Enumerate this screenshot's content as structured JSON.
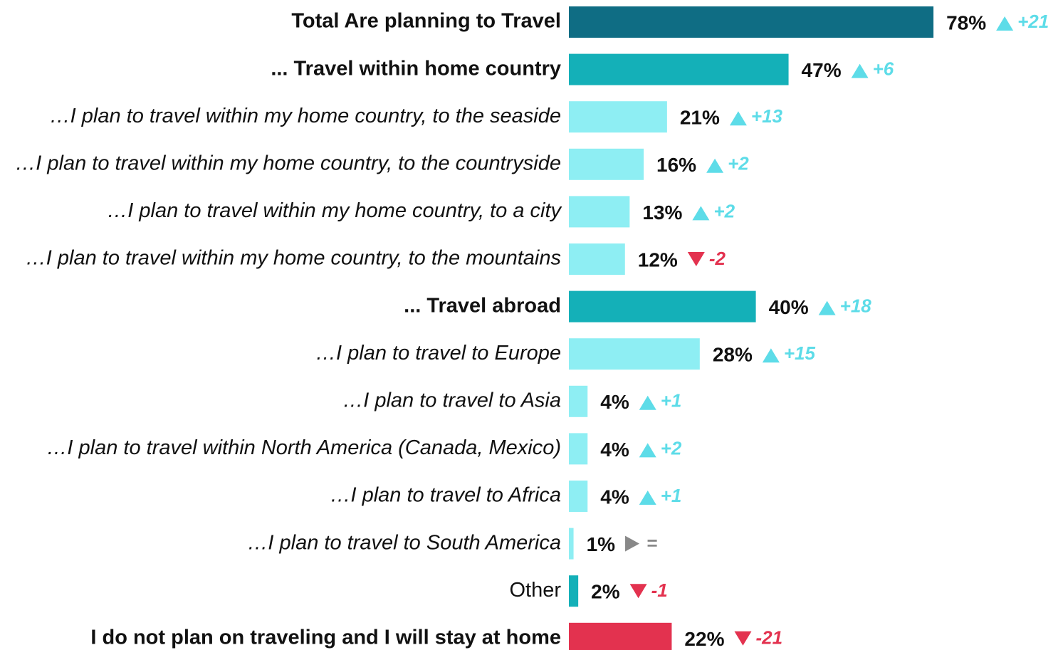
{
  "chart_data": {
    "type": "bar",
    "orientation": "horizontal",
    "categories": [
      "Total Are planning to Travel",
      "... Travel within home country",
      "…I plan to travel within my home country, to the seaside",
      "…I plan to travel within my home country, to the countryside",
      "…I plan to travel within my home country, to a city",
      "…I plan to travel within my home country, to the mountains",
      "... Travel abroad",
      "…I plan to travel to Europe",
      "…I plan to travel to Asia",
      "…I plan to travel within North America (Canada, Mexico)",
      "…I plan to travel to Africa",
      "…I plan to travel to South America",
      "Other",
      "I do not plan on traveling and I will stay at home"
    ],
    "values": [
      78,
      47,
      21,
      16,
      13,
      12,
      40,
      28,
      4,
      4,
      4,
      1,
      2,
      22
    ],
    "value_labels": [
      "78%",
      "47%",
      "21%",
      "16%",
      "13%",
      "12%",
      "40%",
      "28%",
      "4%",
      "4%",
      "4%",
      "1%",
      "2%",
      "22%"
    ],
    "changes": [
      21,
      6,
      13,
      2,
      2,
      -2,
      18,
      15,
      1,
      2,
      1,
      0,
      -1,
      -21
    ],
    "change_labels": [
      "+21",
      "+6",
      "+13",
      "+2",
      "+2",
      "-2",
      "+18",
      "+15",
      "+1",
      "+2",
      "+1",
      "=",
      "-1",
      "-21"
    ],
    "colors": [
      "#0f6d84",
      "#14b0b8",
      "#8eeef3",
      "#8eeef3",
      "#8eeef3",
      "#8eeef3",
      "#14b0b8",
      "#8eeef3",
      "#8eeef3",
      "#8eeef3",
      "#8eeef3",
      "#8eeef3",
      "#14b0b8",
      "#e3324f"
    ],
    "label_styles": [
      "bold",
      "bold",
      "italic",
      "italic",
      "italic",
      "italic",
      "bold",
      "italic",
      "italic",
      "italic",
      "italic",
      "italic",
      "normal",
      "bold"
    ],
    "up_color": "#5ddce8",
    "down_color": "#e3324f",
    "flat_color": "#888888"
  }
}
